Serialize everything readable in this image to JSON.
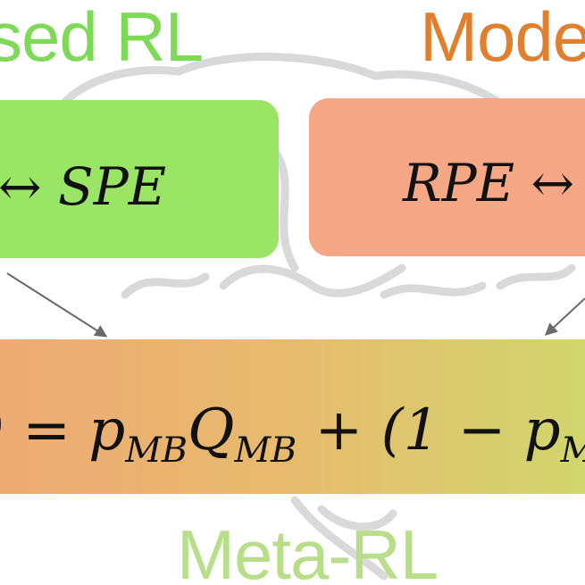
{
  "titles": {
    "model_free": "sed RL",
    "model_based": "Model",
    "meta": "Meta-RL"
  },
  "boxes": {
    "model_free_expr": "↔ SPE",
    "model_based_expr": "RPE ↔",
    "meta_expr_parts": {
      "lhs": ") = p",
      "sub1": "MB",
      "q": "Q",
      "sub2": "MB",
      "rest": " + (1 − p",
      "sub3": "M"
    }
  },
  "colors": {
    "model_free": "#7ed957",
    "model_based": "#e07f2e",
    "meta": "#b9de8a",
    "box_model_free": "#9be566",
    "box_model_based": "#f5a786"
  },
  "icons": {
    "background": "brain-outline-icon"
  }
}
